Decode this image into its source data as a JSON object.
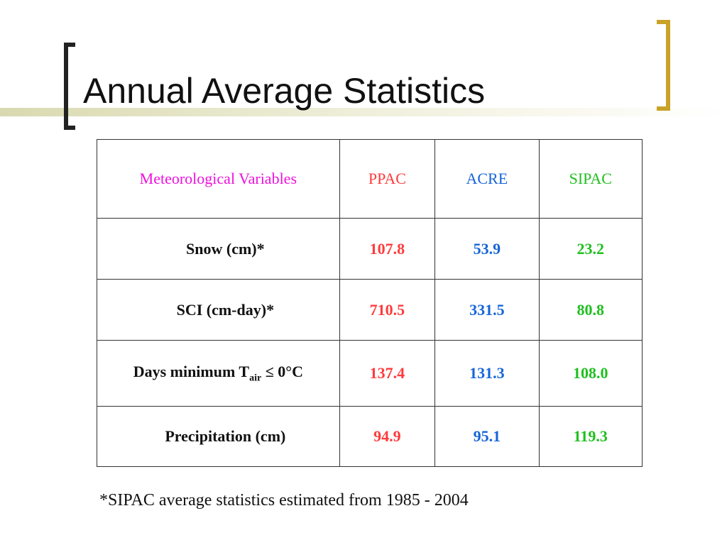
{
  "title": "Annual Average Statistics",
  "colors": {
    "header_variable": "#ee11dd",
    "ppac": "#ff3b3b",
    "acre": "#1565d8",
    "sipac": "#1fbf1f",
    "bracket_right": "#c9a227",
    "bracket_left": "#222222"
  },
  "table": {
    "headers": [
      "Meteorological Variables",
      "PPAC",
      "ACRE",
      "SIPAC"
    ],
    "rows": [
      {
        "label": "Snow (cm)*",
        "ppac": "107.8",
        "acre": "53.9",
        "sipac": "23.2"
      },
      {
        "label": "SCI (cm-day)*",
        "ppac": "710.5",
        "acre": "331.5",
        "sipac": "80.8"
      },
      {
        "label_prefix": "Days minimum T",
        "label_sub": "air",
        "label_suffix": " ≤ 0°C",
        "ppac": "137.4",
        "acre": "131.3",
        "sipac": "108.0"
      },
      {
        "label": "Precipitation (cm)",
        "ppac": "94.9",
        "acre": "95.1",
        "sipac": "119.3"
      }
    ]
  },
  "footnote": "*SIPAC average statistics estimated from 1985 - 2004"
}
